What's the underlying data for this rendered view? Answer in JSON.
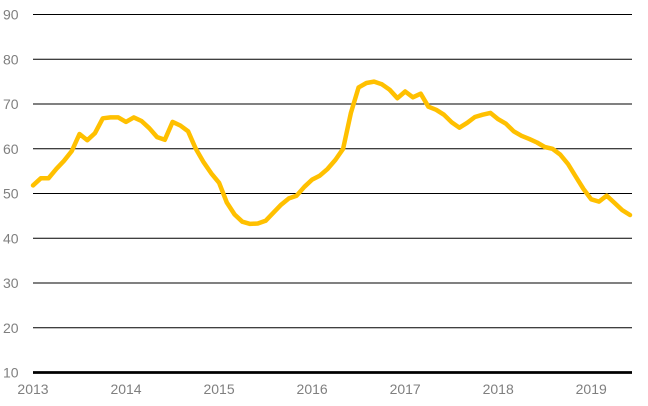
{
  "chart_data": {
    "type": "line",
    "title": "",
    "x_start": "2013-01",
    "x_end": "2019-06",
    "frequency": "monthly",
    "x_tick_labels": [
      "2013",
      "2014",
      "2015",
      "2016",
      "2017",
      "2018",
      "2019"
    ],
    "y_tick_labels": [
      "10",
      "20",
      "30",
      "40",
      "50",
      "60",
      "70",
      "80",
      "90"
    ],
    "yticks": [
      10,
      20,
      30,
      40,
      50,
      60,
      70,
      80,
      90
    ],
    "ylim": [
      10,
      90
    ],
    "grid": "horizontal",
    "legend_position": "none",
    "series": [
      {
        "name": "series-1",
        "color": "#FFC000",
        "values": [
          51.8,
          53.4,
          53.4,
          55.5,
          57.3,
          59.5,
          63.3,
          61.9,
          63.5,
          66.8,
          67.0,
          67.0,
          66.0,
          67.0,
          66.2,
          64.6,
          62.6,
          62.0,
          66.0,
          65.2,
          63.9,
          60.0,
          57.0,
          54.5,
          52.4,
          48.0,
          45.3,
          43.7,
          43.2,
          43.3,
          43.9,
          45.7,
          47.5,
          48.9,
          49.5,
          51.5,
          53.1,
          54.0,
          55.5,
          57.5,
          60.0,
          68.0,
          73.7,
          74.7,
          75.0,
          74.4,
          73.2,
          71.3,
          72.8,
          71.5,
          72.3,
          69.4,
          68.7,
          67.6,
          65.9,
          64.7,
          65.8,
          67.1,
          67.6,
          68.0,
          66.6,
          65.6,
          63.9,
          62.9,
          62.2,
          61.4,
          60.4,
          60.0,
          58.7,
          56.6,
          53.8,
          51.0,
          48.7,
          48.2,
          49.5,
          47.9,
          46.3,
          45.2
        ]
      }
    ]
  },
  "style": {
    "background_color": "#FFFFFF",
    "gridline_color": "#000000",
    "axis_line_color": "#000000",
    "tick_label_color": "#7F7F7F",
    "series_line_width": 4.5
  }
}
